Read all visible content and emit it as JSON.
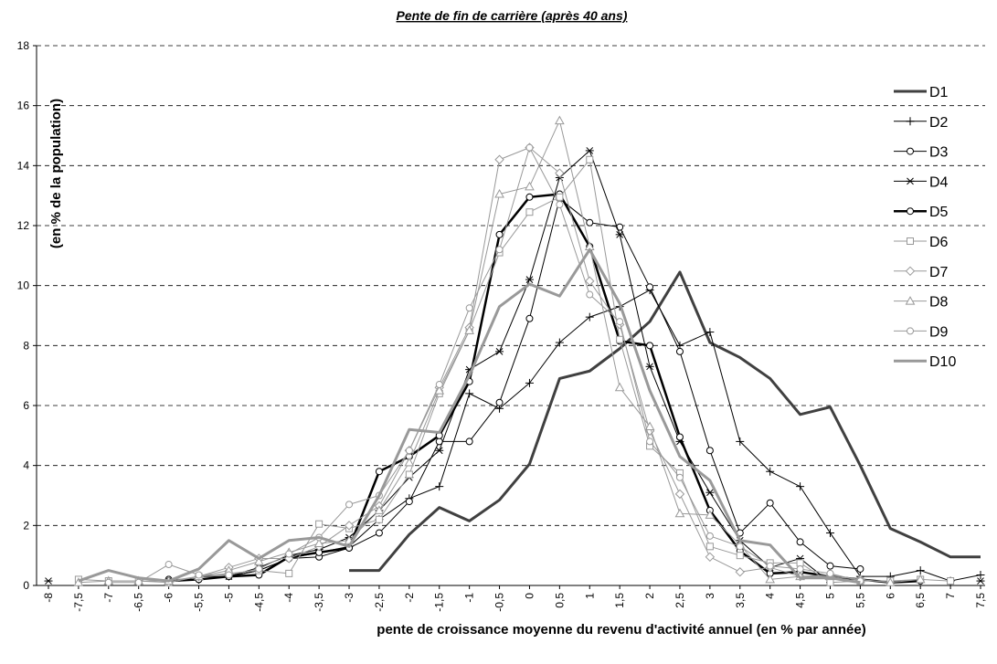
{
  "chart_data": {
    "type": "line",
    "title": "Pente de fin de carrière (après 40 ans)",
    "y_label": "(en % de la population)",
    "x_label": "pente de croissance moyenne du revenu d'activité annuel (en % par année)",
    "categories": [
      "-8",
      "-7,5",
      "-7",
      "-6,5",
      "-6",
      "-5,5",
      "-5",
      "-4,5",
      "-4",
      "-3,5",
      "-3",
      "-2,5",
      "-2",
      "-1,5",
      "-1",
      "-0,5",
      "0",
      "0,5",
      "1",
      "1,5",
      "2",
      "2,5",
      "3",
      "3,5",
      "4",
      "4,5",
      "5",
      "5,5",
      "6",
      "6,5",
      "7",
      "7,5"
    ],
    "ylim": [
      0,
      18
    ],
    "yticks": [
      0,
      2,
      4,
      6,
      8,
      10,
      12,
      14,
      16,
      18
    ],
    "grid": true,
    "legend": "right",
    "series": [
      {
        "name": "D1",
        "color": "#404040",
        "width": 3,
        "marker": "none",
        "values": [
          null,
          null,
          null,
          null,
          null,
          null,
          null,
          null,
          null,
          null,
          0.5,
          0.5,
          1.7,
          2.6,
          2.15,
          2.85,
          4.05,
          6.9,
          7.15,
          7.9,
          8.8,
          10.45,
          8.1,
          7.6,
          6.9,
          5.7,
          5.95,
          4.0,
          1.9,
          1.45,
          0.95,
          0.95
        ]
      },
      {
        "name": "D2",
        "color": "#000000",
        "width": 1,
        "marker": "plus",
        "values": [
          null,
          null,
          null,
          null,
          0.15,
          0.2,
          0.3,
          0.5,
          0.9,
          1.1,
          1.3,
          2.2,
          2.9,
          3.3,
          6.4,
          5.9,
          6.75,
          8.1,
          8.95,
          9.3,
          9.85,
          8.0,
          8.45,
          4.8,
          3.8,
          3.3,
          1.75,
          0.3,
          0.3,
          0.5,
          0.15,
          0.35
        ]
      },
      {
        "name": "D3",
        "color": "#000000",
        "width": 1,
        "marker": "circle",
        "values": [
          null,
          null,
          null,
          null,
          0.2,
          0.2,
          0.3,
          0.5,
          0.9,
          0.95,
          1.25,
          1.75,
          2.8,
          4.8,
          4.8,
          6.1,
          8.9,
          12.9,
          12.1,
          11.95,
          9.95,
          7.8,
          4.5,
          1.75,
          2.75,
          1.45,
          0.65,
          0.55,
          null,
          null,
          null,
          null
        ]
      },
      {
        "name": "D4",
        "color": "#000000",
        "width": 1,
        "marker": "star",
        "values": [
          0.15,
          null,
          null,
          null,
          null,
          0.3,
          0.3,
          0.6,
          1.0,
          1.2,
          1.6,
          2.5,
          3.6,
          4.5,
          7.2,
          7.8,
          10.2,
          13.6,
          14.5,
          11.7,
          7.3,
          4.8,
          3.1,
          1.5,
          0.6,
          0.9,
          0.1,
          null,
          null,
          null,
          null,
          0.15
        ]
      },
      {
        "name": "D5",
        "color": "#000000",
        "width": 2.5,
        "marker": "circle",
        "values": [
          null,
          null,
          null,
          null,
          0.15,
          0.2,
          0.3,
          0.35,
          0.95,
          1.1,
          1.25,
          3.8,
          4.3,
          5.0,
          6.8,
          11.7,
          12.95,
          13.05,
          11.3,
          8.15,
          8.0,
          4.95,
          2.5,
          1.15,
          0.4,
          0.45,
          0.3,
          0.2,
          0.1,
          0.15,
          null,
          null
        ]
      },
      {
        "name": "D6",
        "color": "#999999",
        "width": 1,
        "marker": "square",
        "values": [
          null,
          0.2,
          0.15,
          0.15,
          0.1,
          0.3,
          0.4,
          0.5,
          0.4,
          2.05,
          1.9,
          2.2,
          3.7,
          6.4,
          8.5,
          11.1,
          12.45,
          12.95,
          14.2,
          8.2,
          4.65,
          3.75,
          1.3,
          1.0,
          0.75,
          0.75,
          0.1,
          0.15,
          0.15,
          0.2,
          0.15,
          null
        ]
      },
      {
        "name": "D7",
        "color": "#999999",
        "width": 1,
        "marker": "diamond",
        "values": [
          null,
          null,
          null,
          null,
          0.1,
          0.3,
          0.6,
          0.9,
          0.9,
          1.3,
          2.0,
          2.65,
          4.5,
          6.6,
          8.6,
          14.2,
          14.6,
          13.75,
          10.15,
          8.7,
          5.15,
          3.05,
          0.95,
          0.45,
          0.6,
          0.3,
          0.35,
          0.2,
          null,
          null,
          null,
          null
        ]
      },
      {
        "name": "D8",
        "color": "#999999",
        "width": 1,
        "marker": "triangle",
        "values": [
          null,
          0.1,
          0.15,
          0.15,
          0.15,
          0.3,
          0.5,
          0.8,
          1.1,
          1.4,
          1.5,
          2.5,
          4.1,
          6.5,
          8.5,
          13.05,
          13.3,
          15.5,
          11.3,
          6.6,
          5.3,
          2.4,
          2.35,
          1.35,
          0.2,
          0.3,
          0.3,
          0.2,
          0.1,
          0.2,
          null,
          null
        ]
      },
      {
        "name": "D9",
        "color": "#999999",
        "width": 1,
        "marker": "circle",
        "values": [
          null,
          null,
          0.1,
          0.1,
          0.7,
          0.35,
          0.35,
          0.55,
          1.05,
          1.6,
          2.7,
          3.0,
          4.5,
          6.7,
          9.25,
          11.2,
          14.6,
          12.7,
          9.7,
          8.8,
          4.8,
          3.6,
          1.65,
          1.3,
          0.65,
          0.55,
          0.4,
          0.15,
          null,
          null,
          null,
          null
        ]
      },
      {
        "name": "D10",
        "color": "#999999",
        "width": 3,
        "marker": "none",
        "values": [
          null,
          0.15,
          0.5,
          0.25,
          0.15,
          0.55,
          1.5,
          0.9,
          1.5,
          1.6,
          1.3,
          3.0,
          5.2,
          5.1,
          7.0,
          9.3,
          10.05,
          9.65,
          11.2,
          9.4,
          6.5,
          4.3,
          3.5,
          1.5,
          1.35,
          0.25,
          0.25,
          0.1,
          null,
          null,
          null,
          null
        ]
      }
    ]
  }
}
